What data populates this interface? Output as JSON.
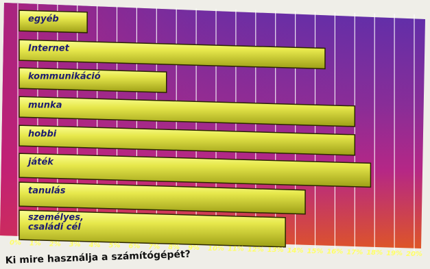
{
  "chart_data": {
    "type": "bar",
    "orientation": "horizontal",
    "title": "Ki mire használja a számítógépét?",
    "categories": [
      "egyéb",
      "Internet",
      "kommunikáció",
      "munka",
      "hobbi",
      "játék",
      "tanulás",
      "személyes, családi cél"
    ],
    "category_labels": [
      [
        "egyéb"
      ],
      [
        "Internet"
      ],
      [
        "kommunikáció"
      ],
      [
        "munka"
      ],
      [
        "hobbi"
      ],
      [
        "játék"
      ],
      [
        "tanulás"
      ],
      [
        "személyes,",
        "családi cél"
      ]
    ],
    "values": [
      3.5,
      15.5,
      7.5,
      17,
      17,
      17.8,
      14.5,
      13.5
    ],
    "xlim": [
      0,
      20
    ],
    "ticks": [
      "0%",
      "1%",
      "2%",
      "3%",
      "4%",
      "5%",
      "6%",
      "7%",
      "8%",
      "9%",
      "10%",
      "11%",
      "12%",
      "13%",
      "14%",
      "15%",
      "16%",
      "17%",
      "18%",
      "19%",
      "20%"
    ],
    "xlabel": "",
    "ylabel": "",
    "grid": true,
    "legend": "none"
  },
  "colors": {
    "background_top": "#5a2eaa",
    "background_middle": "#b0278d",
    "background_bottom": "#f05a12",
    "bar_fill": "#e7e84c",
    "bar_stroke": "#2a2400",
    "grid": "#ffffff",
    "label": "#1d1d70",
    "tick_label": "#ffff66"
  }
}
